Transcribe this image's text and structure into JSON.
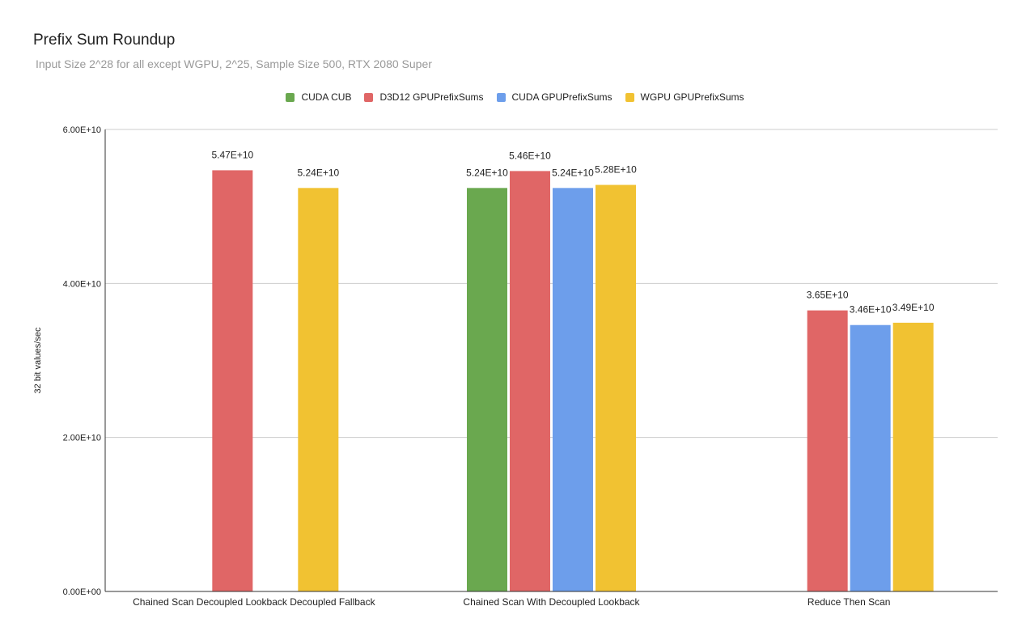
{
  "chart_data": {
    "type": "bar",
    "title": "Prefix Sum Roundup",
    "subtitle": "Input Size 2^28 for all except WGPU, 2^25, Sample Size 500, RTX 2080 Super",
    "xlabel": "",
    "ylabel": "32 bit values/sec",
    "ylim": [
      0,
      60000000000
    ],
    "yticks": [
      0,
      20000000000,
      40000000000,
      60000000000
    ],
    "ytick_labels": [
      "0.00E+00",
      "2.00E+10",
      "4.00E+10",
      "6.00E+10"
    ],
    "grid": true,
    "legend_position": "top-center",
    "categories": [
      "Chained Scan Decoupled Lookback Decoupled Fallback",
      "Chained Scan With Decoupled Lookback",
      "Reduce Then Scan"
    ],
    "series": [
      {
        "name": "CUDA CUB",
        "color": "#6aa84f",
        "values": [
          null,
          52400000000,
          null
        ],
        "labels": [
          "",
          "5.24E+10",
          ""
        ]
      },
      {
        "name": "D3D12 GPUPrefixSums",
        "color": "#e06666",
        "values": [
          54700000000,
          54600000000,
          36500000000
        ],
        "labels": [
          "5.47E+10",
          "5.46E+10",
          "3.65E+10"
        ]
      },
      {
        "name": "CUDA GPUPrefixSums",
        "color": "#6d9eeb",
        "values": [
          null,
          52400000000,
          34600000000
        ],
        "labels": [
          "",
          "5.24E+10",
          "3.46E+10"
        ]
      },
      {
        "name": "WGPU GPUPrefixSums",
        "color": "#f1c232",
        "values": [
          52400000000,
          52800000000,
          34900000000
        ],
        "labels": [
          "5.24E+10",
          "5.28E+10",
          "3.49E+10"
        ]
      }
    ]
  }
}
